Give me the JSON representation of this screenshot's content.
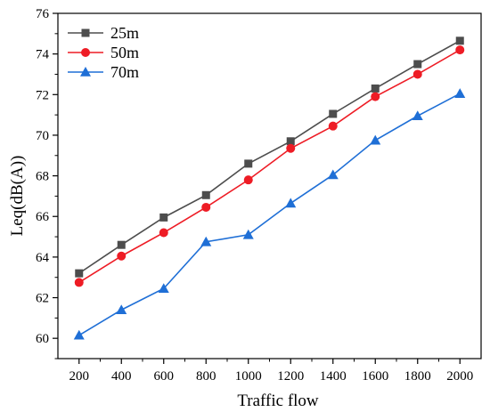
{
  "chart_data": {
    "type": "line",
    "title": "",
    "xlabel": "Traffic flow",
    "ylabel": "Leq(dB(A))",
    "x": [
      200,
      400,
      600,
      800,
      1000,
      1200,
      1400,
      1600,
      1800,
      2000
    ],
    "xlim": [
      100,
      2100
    ],
    "ylim": [
      59,
      76
    ],
    "yticks": [
      60,
      62,
      64,
      66,
      68,
      70,
      72,
      74,
      76
    ],
    "grid": false,
    "legend_position": "top-left",
    "series": [
      {
        "name": "25m",
        "color": "#4d4d4d",
        "marker": "square",
        "values": [
          63.2,
          64.6,
          65.95,
          67.05,
          68.6,
          69.7,
          71.05,
          72.3,
          73.5,
          74.65
        ]
      },
      {
        "name": "50m",
        "color": "#ee1c25",
        "marker": "circle",
        "values": [
          62.75,
          64.05,
          65.2,
          66.45,
          67.8,
          69.35,
          70.45,
          71.9,
          73.0,
          74.2
        ]
      },
      {
        "name": "70m",
        "color": "#1f6fd6",
        "marker": "triangle",
        "values": [
          60.15,
          61.4,
          62.45,
          64.75,
          65.1,
          66.65,
          68.05,
          69.75,
          70.95,
          72.05
        ]
      }
    ]
  }
}
